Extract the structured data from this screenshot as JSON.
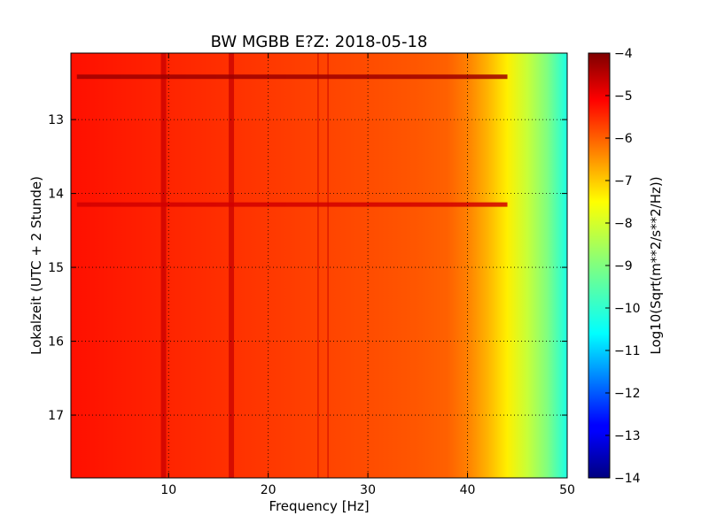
{
  "chart_data": {
    "type": "heatmap",
    "title": "BW MGBB E?Z: 2018-05-18",
    "xlabel": "Frequency [Hz]",
    "ylabel": "Lokalzeit (UTC + 2 Stunde)",
    "xlim": [
      0.2,
      50
    ],
    "ylim": [
      17.85,
      12.1
    ],
    "xticks": [
      10,
      20,
      30,
      40,
      50
    ],
    "yticks": [
      13,
      14,
      15,
      16,
      17
    ],
    "grid": true,
    "colorbar": {
      "label": "Log10(Sqrt(m**2/s**2/Hz))",
      "range": [
        -14,
        -4
      ],
      "ticks": [
        -4,
        -5,
        -6,
        -7,
        -8,
        -9,
        -10,
        -11,
        -12,
        -13,
        -14
      ],
      "colormap": "jet"
    },
    "spectrum_profile": {
      "frequency_hz": [
        0.2,
        5,
        10,
        15,
        20,
        25,
        30,
        35,
        38,
        40,
        42,
        44,
        46,
        48,
        50
      ],
      "log10_amplitude": [
        -5.4,
        -5.5,
        -5.6,
        -5.7,
        -5.8,
        -5.9,
        -6.0,
        -6.1,
        -6.2,
        -6.5,
        -7.0,
        -7.6,
        -8.3,
        -9.0,
        -10.0
      ]
    },
    "spectral_lines_hz": [
      9.5,
      16.3,
      25.0,
      26.0
    ],
    "broadband_events": [
      {
        "time": 12.42,
        "level_log10": -4.3
      },
      {
        "time": 14.15,
        "level_log10": -4.8
      }
    ]
  }
}
